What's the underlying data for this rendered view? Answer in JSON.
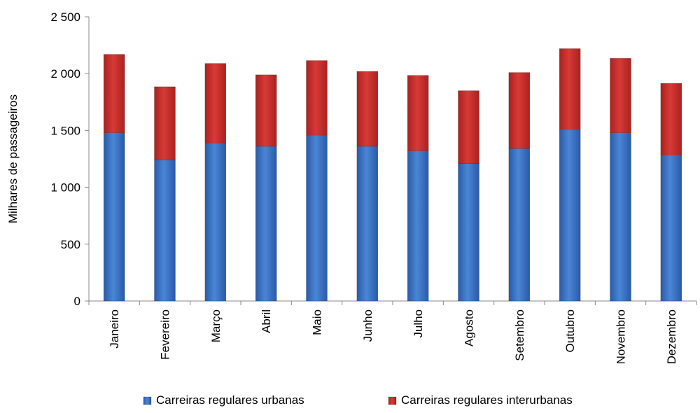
{
  "chart_data": {
    "type": "bar",
    "stacked": true,
    "ylabel": "Milhares de passageiros",
    "ylim": [
      0,
      2500
    ],
    "yticks": [
      0,
      500,
      1000,
      1500,
      2000,
      2500
    ],
    "ytick_labels": [
      "0",
      "500",
      "1 000",
      "1 500",
      "2 000",
      "2 500"
    ],
    "categories": [
      "Janeiro",
      "Fevereiro",
      "Março",
      "Abril",
      "Maio",
      "Junho",
      "Julho",
      "Agosto",
      "Setembro",
      "Outubro",
      "Novembro",
      "Dezembro"
    ],
    "series": [
      {
        "name": "Carreiras regulares urbanas",
        "color": "#3d72c4",
        "values": [
          1480,
          1240,
          1390,
          1360,
          1460,
          1360,
          1320,
          1210,
          1340,
          1510,
          1480,
          1285
        ]
      },
      {
        "name": "Carreiras regulares interurbanas",
        "color": "#c62d2a",
        "values": [
          690,
          645,
          700,
          630,
          655,
          660,
          665,
          640,
          670,
          710,
          655,
          630
        ]
      }
    ],
    "grid": false,
    "legend_position": "bottom"
  }
}
